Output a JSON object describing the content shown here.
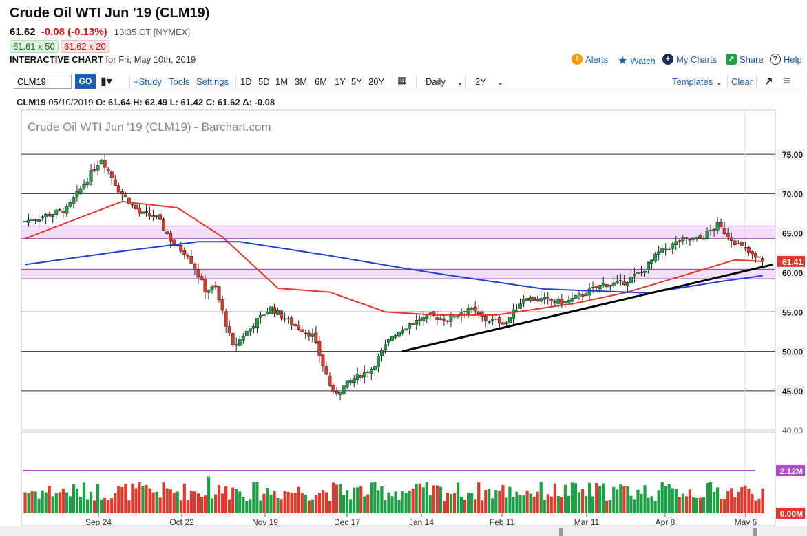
{
  "header": {
    "title": "Crude Oil WTI Jun '19 (CLM19)",
    "last": "61.62",
    "change": "-0.08 (-0.13%)",
    "time": "13:35 CT [NYMEX]",
    "bid": "61.61 x 50",
    "ask": "61.62 x 20",
    "chart_label": "INTERACTIVE CHART",
    "chart_date": "for Fri, May 10th, 2019",
    "links": {
      "alerts": "Alerts",
      "watch": "Watch",
      "my_charts": "My Charts",
      "share": "Share",
      "help": "Help"
    }
  },
  "toolbar": {
    "symbol": "CLM19",
    "go": "GO",
    "study": "+Study",
    "tools": "Tools",
    "settings": "Settings",
    "ranges": [
      "1D",
      "5D",
      "1M",
      "3M",
      "6M",
      "1Y",
      "5Y",
      "20Y"
    ],
    "period": "Daily",
    "span": "2Y",
    "templates": "Templates",
    "clear": "Clear"
  },
  "ohlc": {
    "symbol": "CLM19",
    "date": "05/10/2019",
    "open": "O: 61.64",
    "high": "H: 62.49",
    "low": "L: 61.42",
    "close": "C: 61.62",
    "delta": "Δ: -0.08"
  },
  "chart_data": {
    "type": "candlestick",
    "title": "Crude Oil WTI Jun '19 (CLM19) - Barchart.com",
    "x_tick_labels": [
      "Sep 24",
      "Oct 22",
      "Nov 19",
      "Dec 17",
      "Jan 14",
      "Feb 11",
      "Mar 11",
      "Apr 8",
      "May 6"
    ],
    "y_tick_labels": [
      "75.00",
      "70.00",
      "65.00",
      "60.00",
      "55.00",
      "50.00",
      "45.00",
      "40.00"
    ],
    "ylim": [
      40,
      78
    ],
    "current_price_label": "61.41",
    "volume_labels": [
      "2.12M",
      "0.00M"
    ],
    "colors": {
      "up": "#1e9e45",
      "down": "#e0392b",
      "ma_fast": "#e0392b",
      "ma_slow": "#1f3fcc",
      "zone_fill": "#e6c9ef",
      "zone_line": "#8a3fa3",
      "trendline": "#000000",
      "volume_ma": "#b04bd1"
    },
    "horizontal_levels": [
      75,
      70,
      55,
      50,
      45
    ],
    "zones": [
      [
        64.3,
        65.9
      ],
      [
        59.2,
        60.4
      ]
    ],
    "trendline": [
      [
        0,
        50
      ],
      [
        1,
        61
      ]
    ],
    "closes_anchor": [
      [
        0,
        66.5
      ],
      [
        12,
        68.0
      ],
      [
        22,
        74.5
      ],
      [
        27,
        70.5
      ],
      [
        33,
        67.5
      ],
      [
        38,
        67.0
      ],
      [
        43,
        63.5
      ],
      [
        47,
        62.3
      ],
      [
        52,
        57.8
      ],
      [
        55,
        58.0
      ],
      [
        60,
        50.5
      ],
      [
        66,
        53.5
      ],
      [
        71,
        55.5
      ],
      [
        77,
        53.5
      ],
      [
        83,
        52.0
      ],
      [
        89,
        44.5
      ],
      [
        95,
        46.5
      ],
      [
        100,
        47.8
      ],
      [
        106,
        52.0
      ],
      [
        111,
        53.5
      ],
      [
        117,
        54.5
      ],
      [
        122,
        54.0
      ],
      [
        128,
        55.5
      ],
      [
        133,
        54.0
      ],
      [
        139,
        53.7
      ],
      [
        144,
        56.8
      ],
      [
        150,
        56.5
      ],
      [
        156,
        56.2
      ],
      [
        161,
        57.2
      ],
      [
        167,
        58.5
      ],
      [
        172,
        58.6
      ],
      [
        178,
        60.0
      ],
      [
        183,
        62.5
      ],
      [
        189,
        64.0
      ],
      [
        195,
        64.3
      ],
      [
        200,
        66.0
      ],
      [
        206,
        63.5
      ],
      [
        211,
        61.8
      ],
      [
        213,
        61.62
      ]
    ],
    "ma_fast": [
      [
        0,
        64.3
      ],
      [
        28,
        69.0
      ],
      [
        44,
        68.2
      ],
      [
        57,
        64.5
      ],
      [
        73,
        58.0
      ],
      [
        88,
        57.5
      ],
      [
        104,
        55.0
      ],
      [
        119,
        54.6
      ],
      [
        136,
        54.6
      ],
      [
        159,
        56.1
      ],
      [
        174,
        57.5
      ],
      [
        190,
        59.6
      ],
      [
        205,
        61.6
      ],
      [
        213,
        61.4
      ]
    ],
    "ma_slow": [
      [
        0,
        61.0
      ],
      [
        28,
        62.7
      ],
      [
        50,
        63.9
      ],
      [
        62,
        63.9
      ],
      [
        87,
        62.2
      ],
      [
        110,
        60.5
      ],
      [
        120,
        59.8
      ],
      [
        150,
        57.9
      ],
      [
        180,
        57.4
      ],
      [
        200,
        58.8
      ],
      [
        213,
        59.6
      ]
    ],
    "volume_ma_level": 2.12
  }
}
